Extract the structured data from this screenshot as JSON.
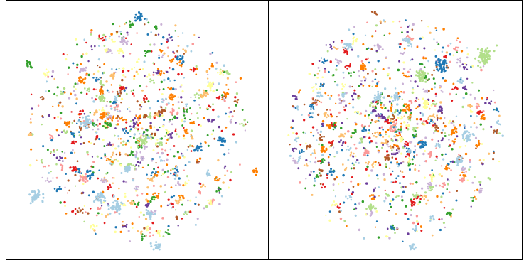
{
  "palette": {
    "light_blue": "#a6cee3",
    "blue": "#1f78b4",
    "light_green": "#b2df8a",
    "green": "#33a02c",
    "pink": "#fb9a99",
    "red": "#e31a1c",
    "light_orange": "#fdbf6f",
    "orange": "#ff7f00",
    "lavender": "#cab2d6",
    "purple": "#6a3d9a",
    "yellow": "#ffff99",
    "brown": "#b15928"
  },
  "chart_data": [
    {
      "type": "scatter",
      "title": "",
      "xlabel": "",
      "ylabel": "",
      "grid": false,
      "legend": "none",
      "axes_ticks": "none",
      "xlim": [
        -1,
        1
      ],
      "ylim": [
        -1,
        1
      ],
      "point_count_estimate": 1400,
      "classes": 12,
      "seed": 7,
      "clusters": [
        {
          "color": "light_blue",
          "x": -0.84,
          "y": -0.55,
          "size": 1.6
        },
        {
          "color": "light_blue",
          "x": -0.18,
          "y": -0.65,
          "size": 1.6
        },
        {
          "color": "light_blue",
          "x": -0.3,
          "y": -0.57,
          "size": 1.3
        },
        {
          "color": "light_blue",
          "x": 0.16,
          "y": -0.98,
          "size": 1.2
        },
        {
          "color": "light_blue",
          "x": -0.42,
          "y": 0.07,
          "size": 1.4
        },
        {
          "color": "light_blue",
          "x": -0.08,
          "y": -0.32,
          "size": 1.1
        },
        {
          "color": "light_blue",
          "x": 0.1,
          "y": -0.7,
          "size": 1.0
        },
        {
          "color": "blue",
          "x": 0.03,
          "y": 0.95,
          "size": 1.0
        },
        {
          "color": "blue",
          "x": 0.5,
          "y": -0.15,
          "size": 1.0
        },
        {
          "color": "blue",
          "x": 0.7,
          "y": -0.1,
          "size": 1.0
        },
        {
          "color": "blue",
          "x": 0.36,
          "y": 0.6,
          "size": 0.9
        },
        {
          "color": "blue",
          "x": -0.4,
          "y": -0.38,
          "size": 0.9
        },
        {
          "color": "orange",
          "x": -0.46,
          "y": 0.42,
          "size": 1.0
        },
        {
          "color": "orange",
          "x": 0.28,
          "y": 0.28,
          "size": 0.9
        },
        {
          "color": "orange",
          "x": -0.28,
          "y": 0.12,
          "size": 1.0
        },
        {
          "color": "orange",
          "x": -0.58,
          "y": 0.06,
          "size": 0.8
        },
        {
          "color": "orange",
          "x": 0.98,
          "y": -0.35,
          "size": 0.8
        },
        {
          "color": "light_green",
          "x": 0.05,
          "y": -0.09,
          "size": 1.2
        },
        {
          "color": "light_green",
          "x": -0.3,
          "y": 0.27,
          "size": 1.0
        },
        {
          "color": "pink",
          "x": -0.45,
          "y": -0.4,
          "size": 0.9
        },
        {
          "color": "pink",
          "x": 0.3,
          "y": 0.15,
          "size": 0.8
        },
        {
          "color": "red",
          "x": -0.52,
          "y": -0.33,
          "size": 0.8
        },
        {
          "color": "red",
          "x": -0.13,
          "y": 0.35,
          "size": 0.8
        },
        {
          "color": "green",
          "x": -0.9,
          "y": 0.55,
          "size": 0.8
        },
        {
          "color": "green",
          "x": -0.25,
          "y": 0.05,
          "size": 0.7
        },
        {
          "color": "lavender",
          "x": -0.12,
          "y": 0.75,
          "size": 0.9
        },
        {
          "color": "lavender",
          "x": -0.45,
          "y": 0.5,
          "size": 0.7
        },
        {
          "color": "purple",
          "x": -0.02,
          "y": 0.05,
          "size": 0.7
        },
        {
          "color": "yellow",
          "x": 0.6,
          "y": 0.37,
          "size": 0.9
        },
        {
          "color": "yellow",
          "x": -0.14,
          "y": 0.67,
          "size": 0.8
        },
        {
          "color": "brown",
          "x": 0.2,
          "y": 0.15,
          "size": 0.8
        },
        {
          "color": "light_orange",
          "x": 0.55,
          "y": 0.3,
          "size": 0.9
        },
        {
          "color": "light_orange",
          "x": -0.2,
          "y": 0.45,
          "size": 0.8
        }
      ]
    },
    {
      "type": "scatter",
      "title": "",
      "xlabel": "",
      "ylabel": "",
      "grid": false,
      "legend": "none",
      "axes_ticks": "none",
      "xlim": [
        -1,
        1
      ],
      "ylim": [
        -1,
        1
      ],
      "point_count_estimate": 1500,
      "classes": 12,
      "seed": 19,
      "clusters": [
        {
          "color": "light_green",
          "x": 0.76,
          "y": 0.62,
          "size": 2.0
        },
        {
          "color": "blue",
          "x": 0.4,
          "y": 0.55,
          "size": 1.6
        },
        {
          "color": "light_green",
          "x": 0.22,
          "y": 0.45,
          "size": 1.5
        },
        {
          "color": "light_blue",
          "x": 0.62,
          "y": -0.05,
          "size": 1.3
        },
        {
          "color": "light_blue",
          "x": 0.55,
          "y": -0.25,
          "size": 1.0
        },
        {
          "color": "light_blue",
          "x": -0.15,
          "y": 0.28,
          "size": 1.1
        },
        {
          "color": "light_blue",
          "x": 0.0,
          "y": 0.28,
          "size": 1.0
        },
        {
          "color": "yellow",
          "x": 0.26,
          "y": 0.22,
          "size": 1.0
        },
        {
          "color": "blue",
          "x": 0.23,
          "y": -0.12,
          "size": 1.0
        },
        {
          "color": "orange",
          "x": -0.62,
          "y": -0.17,
          "size": 0.9
        },
        {
          "color": "orange",
          "x": -0.28,
          "y": 0.53,
          "size": 0.9
        },
        {
          "color": "orange",
          "x": 0.1,
          "y": 0.19,
          "size": 0.8
        },
        {
          "color": "orange",
          "x": 0.5,
          "y": 0.0,
          "size": 0.8
        },
        {
          "color": "light_orange",
          "x": -0.46,
          "y": -0.05,
          "size": 0.8
        },
        {
          "color": "pink",
          "x": -0.25,
          "y": -0.18,
          "size": 0.8
        },
        {
          "color": "pink",
          "x": 0.3,
          "y": -0.2,
          "size": 0.7
        },
        {
          "color": "red",
          "x": 0.15,
          "y": -0.6,
          "size": 0.7
        },
        {
          "color": "green",
          "x": 0.46,
          "y": -0.7,
          "size": 0.7
        },
        {
          "color": "light_green",
          "x": -0.2,
          "y": -0.65,
          "size": 0.9
        },
        {
          "color": "lavender",
          "x": -0.15,
          "y": 0.7,
          "size": 0.8
        },
        {
          "color": "purple",
          "x": -0.1,
          "y": 0.1,
          "size": 0.7
        },
        {
          "color": "brown",
          "x": -0.17,
          "y": 0.98,
          "size": 0.6
        },
        {
          "color": "light_blue",
          "x": -0.4,
          "y": 0.7,
          "size": 0.9
        },
        {
          "color": "light_blue",
          "x": 0.1,
          "y": 0.75,
          "size": 0.9
        },
        {
          "color": "light_blue",
          "x": 0.14,
          "y": -0.98,
          "size": 0.9
        },
        {
          "color": "light_blue",
          "x": -0.65,
          "y": 0.3,
          "size": 0.7
        },
        {
          "color": "blue",
          "x": -0.55,
          "y": -0.35,
          "size": 0.7
        },
        {
          "color": "orange",
          "x": 0.75,
          "y": 0.1,
          "size": 0.7
        },
        {
          "color": "yellow",
          "x": 0.32,
          "y": -0.4,
          "size": 0.7
        }
      ]
    }
  ]
}
